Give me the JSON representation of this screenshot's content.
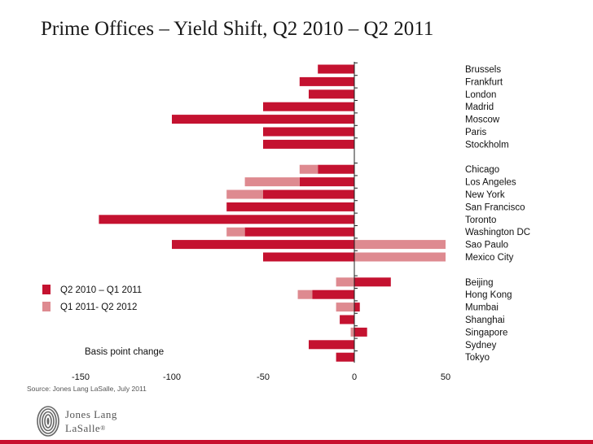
{
  "slide": {
    "title": "Prime Offices – Yield Shift, Q2 2010 – Q2 2011",
    "source": "Source: Jones Lang LaSalle, July  2011",
    "logo": {
      "line1": "Jones Lang",
      "line2": "LaSalle",
      "registered": "®"
    }
  },
  "colors": {
    "series1": "#c41230",
    "series2": "#de8a90",
    "accent": "#c8102e"
  },
  "chart_data": {
    "type": "bar",
    "orientation": "horizontal",
    "stacked": true,
    "xlabel": "Basis point change",
    "xlim": [
      -150,
      50
    ],
    "xticks": [
      -150,
      -100,
      -50,
      0,
      50
    ],
    "legend_position": "left",
    "groups": [
      [
        "Brussels",
        "Frankfurt",
        "London",
        "Madrid",
        "Moscow",
        "Paris",
        "Stockholm"
      ],
      [
        "Chicago",
        "Los Angeles",
        "New York",
        "San Francisco",
        "Toronto",
        "Washington DC",
        "Sao Paulo",
        "Mexico City"
      ],
      [
        "Beijing",
        "Hong Kong",
        "Mumbai",
        "Shanghai",
        "Singapore",
        "Sydney",
        "Tokyo"
      ]
    ],
    "categories": [
      "Brussels",
      "Frankfurt",
      "London",
      "Madrid",
      "Moscow",
      "Paris",
      "Stockholm",
      "Chicago",
      "Los Angeles",
      "New York",
      "San Francisco",
      "Toronto",
      "Washington DC",
      "Sao Paulo",
      "Mexico City",
      "Beijing",
      "Hong Kong",
      "Mumbai",
      "Shanghai",
      "Singapore",
      "Sydney",
      "Tokyo"
    ],
    "series": [
      {
        "name": "Q2 2010 – Q1 2011",
        "color": "#c41230",
        "values": [
          -20,
          -30,
          -25,
          -50,
          -100,
          -50,
          -50,
          -20,
          -30,
          -50,
          -70,
          -140,
          -60,
          -100,
          -50,
          20,
          -23,
          3,
          -8,
          7,
          -25,
          -10
        ]
      },
      {
        "name": "Q1 2011- Q2 2012",
        "color": "#de8a90",
        "values": [
          0,
          0,
          0,
          0,
          0,
          0,
          0,
          -10,
          -30,
          -20,
          0,
          0,
          -10,
          50,
          50,
          -10,
          -8,
          -10,
          0,
          -2,
          0,
          0
        ]
      }
    ]
  }
}
